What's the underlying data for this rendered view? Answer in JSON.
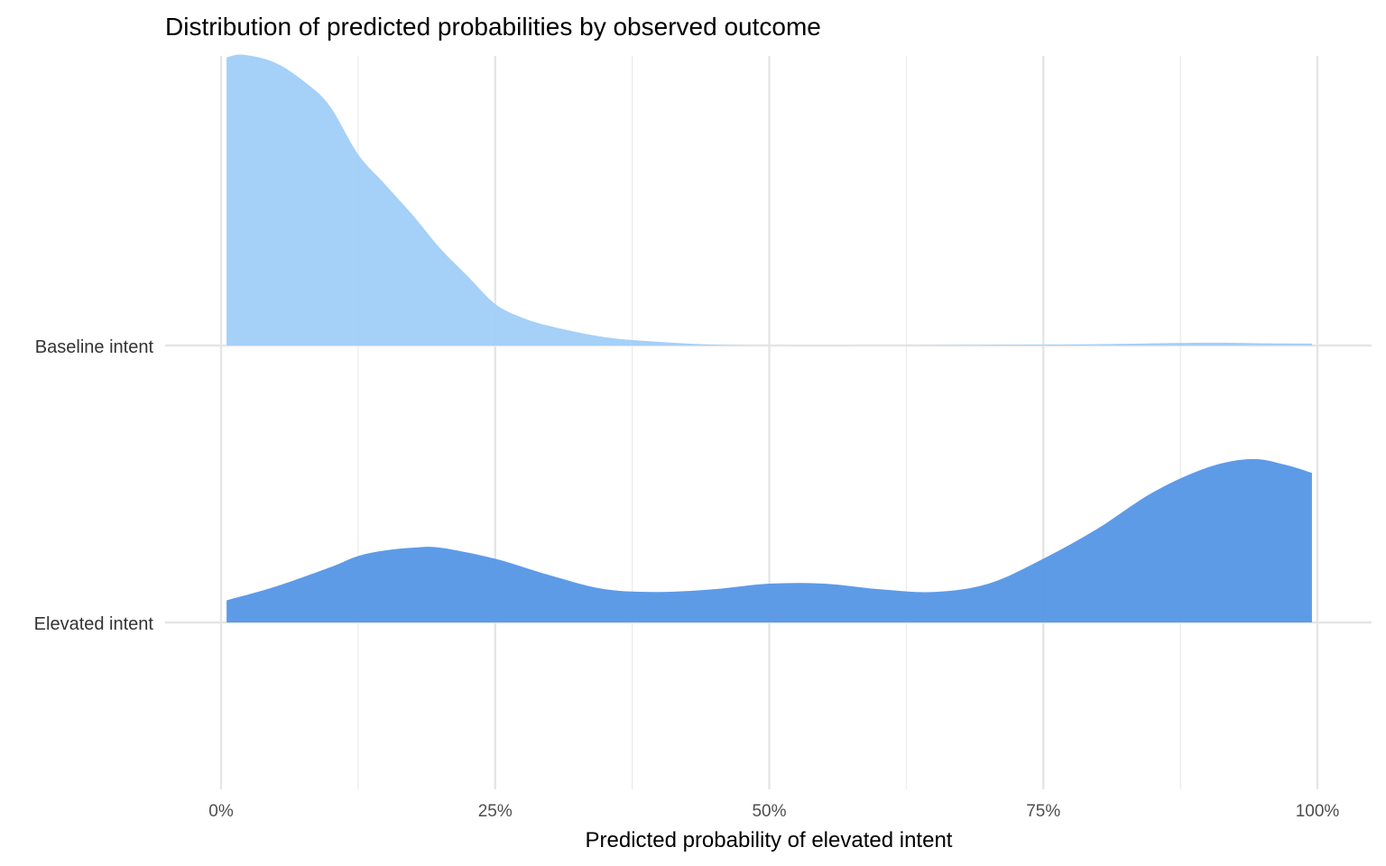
{
  "chart_data": {
    "type": "area",
    "subtype": "ridgeline-density",
    "title": "Distribution of predicted probabilities by observed outcome",
    "xlabel": "Predicted probability of elevated intent",
    "ylabel": "",
    "xlim": [
      0,
      100
    ],
    "x_ticks": [
      "0%",
      "25%",
      "50%",
      "75%",
      "100%"
    ],
    "x_tick_values": [
      0,
      25,
      50,
      75,
      100
    ],
    "grid": true,
    "legend": "none",
    "y_categories": [
      "Baseline intent",
      "Elevated intent"
    ],
    "density_scale_note": "relative density, ridge spacing = 1",
    "series": [
      {
        "name": "Baseline intent",
        "color": "#A0CDF7",
        "x": [
          0.5,
          2,
          5,
          8,
          10,
          12.5,
          15,
          17.5,
          20,
          22.5,
          25,
          27.5,
          30,
          35,
          40,
          45,
          50,
          60,
          70,
          75,
          80,
          90,
          95,
          99.5
        ],
        "density": [
          1.04,
          1.05,
          1.02,
          0.94,
          0.86,
          0.69,
          0.58,
          0.47,
          0.35,
          0.25,
          0.15,
          0.1,
          0.07,
          0.03,
          0.013,
          0.003,
          0,
          0,
          0.002,
          0.003,
          0.005,
          0.01,
          0.008,
          0.007
        ]
      },
      {
        "name": "Elevated intent",
        "color": "#5596E6",
        "x": [
          0.5,
          5,
          10,
          12.5,
          15,
          17.5,
          20,
          25,
          30,
          35,
          40,
          45,
          50,
          55,
          60,
          65,
          70,
          75,
          80,
          85,
          90,
          94,
          97,
          99.5
        ],
        "density": [
          0.08,
          0.13,
          0.2,
          0.24,
          0.26,
          0.27,
          0.27,
          0.23,
          0.17,
          0.12,
          0.11,
          0.12,
          0.14,
          0.14,
          0.12,
          0.11,
          0.14,
          0.23,
          0.34,
          0.47,
          0.56,
          0.59,
          0.57,
          0.54
        ]
      }
    ]
  }
}
